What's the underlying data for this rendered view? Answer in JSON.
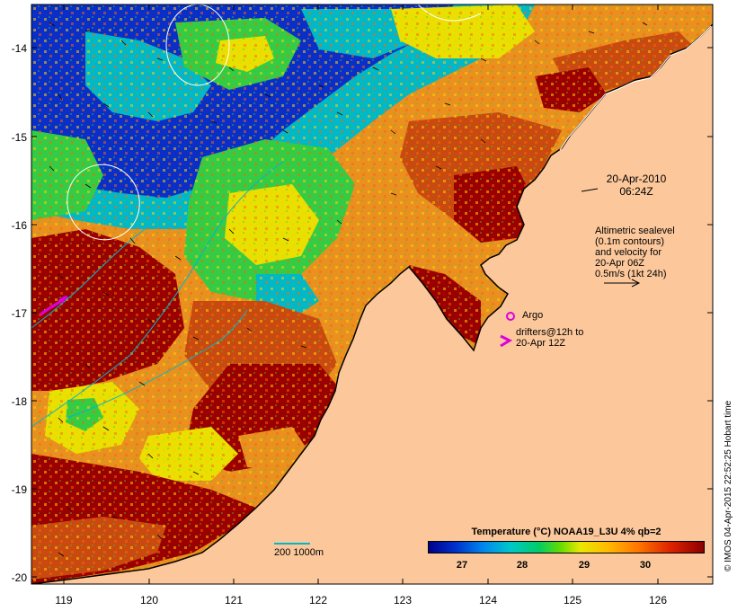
{
  "map": {
    "date_line1": "20-Apr-2010",
    "date_line2": "06:24Z",
    "legend": {
      "line1": "Altimetric sealevel",
      "line2": "(0.1m contours)",
      "line3": "and velocity for",
      "line4": "20-Apr 06Z",
      "line5": "0.5m/s (1kt 24h)",
      "argo_label": "Argo",
      "drifters_line1": "drifters@12h to",
      "drifters_line2": "20-Apr 12Z"
    },
    "depth_scale_label": "200  1000m",
    "colorbar": {
      "title": "Temperature (°C) NOAA19_L3U 4% qb=2",
      "ticks": [
        "27",
        "28",
        "29",
        "30"
      ]
    },
    "credit": "© IMOS 04-Apr-2015 22:52:25 Hobart time",
    "latitude_labels": [
      "-14",
      "-15",
      "-16",
      "-17",
      "-18",
      "-19",
      "-20"
    ],
    "longitude_labels": [
      "119",
      "120",
      "121",
      "122",
      "123",
      "124",
      "125",
      "126"
    ],
    "colors": {
      "land": "#fcc89b",
      "cold": "#0a2fc8",
      "cyan": "#00b8c8",
      "green": "#33cc44",
      "yellow": "#e8e000",
      "orange": "#e89020",
      "warm": "#c84a10",
      "hot": "#9a0000",
      "argo": "#dd00dd"
    }
  }
}
